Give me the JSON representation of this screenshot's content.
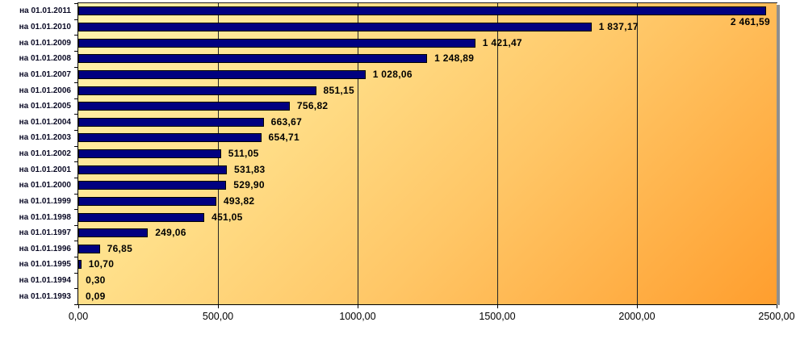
{
  "chart_data": {
    "type": "bar",
    "orientation": "horizontal",
    "title": "",
    "xlabel": "",
    "ylabel": "",
    "legend": "none",
    "grid": "vertical",
    "xlim": [
      0,
      2500
    ],
    "categories": [
      "на 01.01.2011",
      "на 01.01.2010",
      "на 01.01.2009",
      "на 01.01.2008",
      "на 01.01.2007",
      "на 01.01.2006",
      "на 01.01.2005",
      "на 01.01.2004",
      "на 01.01.2003",
      "на 01.01.2002",
      "на 01.01.2001",
      "на 01.01.2000",
      "на 01.01.1999",
      "на 01.01.1998",
      "на 01.01.1997",
      "на 01.01.1996",
      "на 01.01.1995",
      "на 01.01.1994",
      "на 01.01.1993"
    ],
    "values": [
      2461.59,
      1837.17,
      1421.47,
      1248.89,
      1028.06,
      851.15,
      756.82,
      663.67,
      654.71,
      511.05,
      531.83,
      529.9,
      493.82,
      451.05,
      249.06,
      76.85,
      10.7,
      0.3,
      0.09
    ],
    "value_labels": [
      "2 461,59",
      "1 837,17",
      "1 421,47",
      "1 248,89",
      "1 028,06",
      "851,15",
      "756,82",
      "663,67",
      "654,71",
      "511,05",
      "531,83",
      "529,90",
      "493,82",
      "451,05",
      "249,06",
      "76,85",
      "10,70",
      "0,30",
      "0,09"
    ],
    "x_tick_values": [
      0,
      500,
      1000,
      1500,
      2000,
      2500
    ],
    "x_tick_labels": [
      "0,00",
      "500,00",
      "1000,00",
      "1500,00",
      "2000,00",
      "2500,00"
    ],
    "colors": {
      "bar_fill": "#000080",
      "bar_border": "#000000",
      "plot_gradient_start": "#FFF4AF",
      "plot_gradient_end": "#FF9E2E",
      "gridline": "#262626",
      "axis_line": "#000000",
      "plot_right_shadow": "#8F8F8F",
      "value_text": "#000000",
      "category_text": "#0B0B26",
      "outer_background": "#FFFFFF"
    }
  }
}
